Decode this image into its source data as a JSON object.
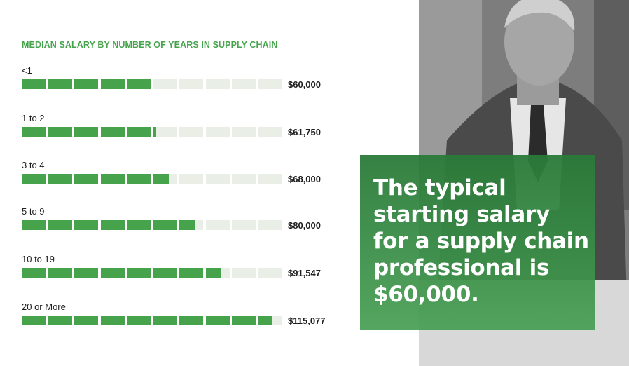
{
  "chart_data": {
    "type": "bar",
    "title": "MEDIAN SALARY BY NUMBER OF YEARS IN SUPPLY CHAIN",
    "categories": [
      "<1",
      "1 to 2",
      "3 to 4",
      "5 to 9",
      "10 to 19",
      "20 or More"
    ],
    "values": [
      60000,
      61750,
      68000,
      80000,
      91547,
      115077
    ],
    "value_labels": [
      "$60,000",
      "$61,750",
      "$68,000",
      "$80,000",
      "$91,547",
      "$115,077"
    ],
    "segments": 10,
    "xlim": [
      0,
      120000
    ],
    "grid": false,
    "colors": {
      "filled": "#47a34b",
      "empty": "#e9efe6",
      "title": "#46a54c"
    }
  },
  "callout": {
    "text": "The typical starting salary for a supply chain professional is $60,000."
  },
  "photo": {
    "icon": "businessman-photo"
  }
}
